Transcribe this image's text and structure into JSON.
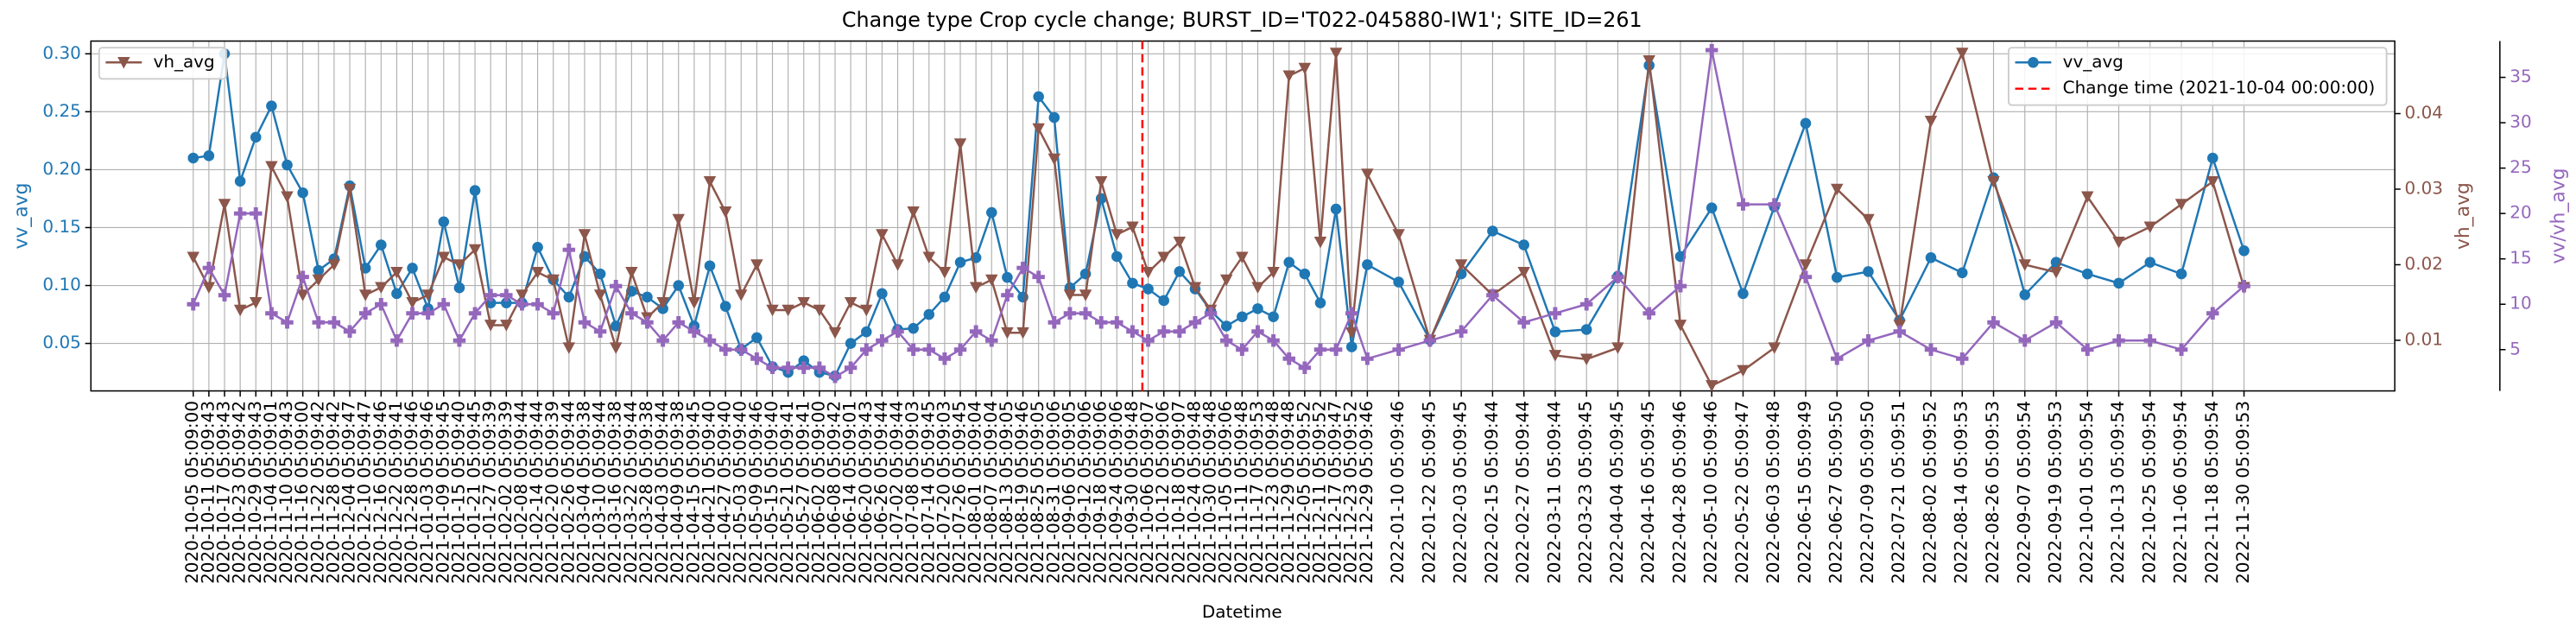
{
  "chart_data": {
    "type": "line",
    "title": "Change type Crop cycle change; BURST_ID='T022-045880-IW1'; SITE_ID=261",
    "xlabel": "Datetime",
    "x": [
      "2020-10-05 05:09:00",
      "2020-10-11 05:09:43",
      "2020-10-17 05:09:43",
      "2020-10-23 05:09:42",
      "2020-10-29 05:09:43",
      "2020-11-04 05:09:01",
      "2020-11-10 05:09:43",
      "2020-11-16 05:09:00",
      "2020-11-22 05:09:42",
      "2020-11-28 05:09:42",
      "2020-12-04 05:09:47",
      "2020-12-10 05:09:47",
      "2020-12-16 05:09:46",
      "2020-12-22 05:09:41",
      "2020-12-28 05:09:46",
      "2021-01-03 05:09:46",
      "2021-01-09 05:09:45",
      "2021-01-15 05:09:40",
      "2021-01-21 05:09:45",
      "2021-01-27 05:09:39",
      "2021-02-02 05:09:39",
      "2021-02-08 05:09:44",
      "2021-02-14 05:09:44",
      "2021-02-20 05:09:39",
      "2021-02-26 05:09:44",
      "2021-03-04 05:09:38",
      "2021-03-10 05:09:44",
      "2021-03-16 05:09:38",
      "2021-03-22 05:09:44",
      "2021-03-28 05:09:38",
      "2021-04-03 05:09:44",
      "2021-04-09 05:09:38",
      "2021-04-15 05:09:45",
      "2021-04-21 05:09:40",
      "2021-04-27 05:09:40",
      "2021-05-03 05:09:40",
      "2021-05-09 05:09:46",
      "2021-05-15 05:09:40",
      "2021-05-21 05:09:41",
      "2021-05-27 05:09:41",
      "2021-06-02 05:09:00",
      "2021-06-08 05:09:42",
      "2021-06-14 05:09:01",
      "2021-06-20 05:09:43",
      "2021-06-26 05:09:44",
      "2021-07-02 05:09:44",
      "2021-07-08 05:09:03",
      "2021-07-14 05:09:45",
      "2021-07-20 05:09:03",
      "2021-07-26 05:09:45",
      "2021-08-01 05:09:04",
      "2021-08-07 05:09:04",
      "2021-08-13 05:09:05",
      "2021-08-19 05:09:46",
      "2021-08-25 05:09:05",
      "2021-08-31 05:09:06",
      "2021-09-06 05:09:05",
      "2021-09-12 05:09:06",
      "2021-09-18 05:09:06",
      "2021-09-24 05:09:06",
      "2021-09-30 05:09:48",
      "2021-10-06 05:09:07",
      "2021-10-12 05:09:06",
      "2021-10-18 05:09:07",
      "2021-10-24 05:09:48",
      "2021-10-30 05:09:48",
      "2021-11-05 05:09:06",
      "2021-11-11 05:09:48",
      "2021-11-17 05:09:53",
      "2021-11-23 05:09:48",
      "2021-11-29 05:09:48",
      "2021-12-05 05:09:52",
      "2021-12-11 05:09:52",
      "2021-12-17 05:09:47",
      "2021-12-23 05:09:52",
      "2021-12-29 05:09:46",
      "2022-01-10 05:09:46",
      "2022-01-22 05:09:45",
      "2022-02-03 05:09:45",
      "2022-02-15 05:09:44",
      "2022-02-27 05:09:44",
      "2022-03-11 05:09:44",
      "2022-03-23 05:09:45",
      "2022-04-04 05:09:45",
      "2022-04-16 05:09:45",
      "2022-04-28 05:09:46",
      "2022-05-10 05:09:46",
      "2022-05-22 05:09:47",
      "2022-06-03 05:09:48",
      "2022-06-15 05:09:49",
      "2022-06-27 05:09:50",
      "2022-07-09 05:09:50",
      "2022-07-21 05:09:51",
      "2022-08-02 05:09:52",
      "2022-08-14 05:09:53",
      "2022-08-26 05:09:53",
      "2022-09-07 05:09:54",
      "2022-09-19 05:09:53",
      "2022-10-01 05:09:54",
      "2022-10-13 05:09:54",
      "2022-10-25 05:09:54",
      "2022-11-06 05:09:54",
      "2022-11-18 05:09:54",
      "2022-11-30 05:09:53"
    ],
    "xlim": [
      "2020-08-27 00:00:00",
      "2023-01-27 00:00:00"
    ],
    "grid": true,
    "series": [
      {
        "name": "vv_avg",
        "color": "#1f77b4",
        "marker": "o",
        "axis": "y",
        "legend": "upper right",
        "values": [
          0.21,
          0.212,
          0.3,
          0.19,
          0.228,
          0.255,
          0.204,
          0.18,
          0.113,
          0.123,
          0.186,
          0.115,
          0.135,
          0.093,
          0.115,
          0.08,
          0.155,
          0.098,
          0.182,
          0.085,
          0.085,
          0.085,
          0.133,
          0.105,
          0.09,
          0.125,
          0.11,
          0.065,
          0.095,
          0.09,
          0.08,
          0.1,
          0.065,
          0.117,
          0.082,
          0.045,
          0.055,
          0.03,
          0.025,
          0.035,
          0.025,
          0.022,
          0.05,
          0.06,
          0.093,
          0.062,
          0.063,
          0.075,
          0.09,
          0.12,
          0.124,
          0.163,
          0.107,
          0.09,
          0.263,
          0.245,
          0.098,
          0.11,
          0.175,
          0.125,
          0.102,
          0.097,
          0.087,
          0.112,
          0.097,
          0.078,
          0.065,
          0.073,
          0.08,
          0.073,
          0.12,
          0.11,
          0.085,
          0.166,
          0.047,
          0.118,
          0.103,
          0.053,
          0.11,
          0.147,
          0.135,
          0.06,
          0.062,
          0.108,
          0.29,
          0.125,
          0.167,
          0.093,
          0.168,
          0.24,
          0.107,
          0.112,
          0.07,
          0.124,
          0.111,
          0.193,
          0.092,
          0.12,
          0.11,
          0.102,
          0.12,
          0.11,
          0.21,
          0.13
        ]
      },
      {
        "name": "vh_avg",
        "color": "#8c564b",
        "marker": "v",
        "axis": "y2",
        "legend": "upper left",
        "values": [
          0.021,
          0.017,
          0.028,
          0.014,
          0.015,
          0.033,
          0.029,
          0.016,
          0.018,
          0.02,
          0.03,
          0.016,
          0.017,
          0.019,
          0.015,
          0.016,
          0.021,
          0.02,
          0.022,
          0.012,
          0.012,
          0.016,
          0.019,
          0.018,
          0.009,
          0.024,
          0.016,
          0.009,
          0.019,
          0.013,
          0.015,
          0.026,
          0.015,
          0.031,
          0.027,
          0.016,
          0.02,
          0.014,
          0.014,
          0.015,
          0.014,
          0.011,
          0.015,
          0.014,
          0.024,
          0.02,
          0.027,
          0.021,
          0.019,
          0.036,
          0.017,
          0.018,
          0.011,
          0.011,
          0.038,
          0.034,
          0.016,
          0.016,
          0.031,
          0.024,
          0.025,
          0.019,
          0.021,
          0.023,
          0.017,
          0.014,
          0.018,
          0.021,
          0.017,
          0.019,
          0.045,
          0.046,
          0.023,
          0.048,
          0.011,
          0.032,
          0.024,
          0.01,
          0.02,
          0.016,
          0.019,
          0.008,
          0.0075,
          0.009,
          0.047,
          0.012,
          0.004,
          0.006,
          0.009,
          0.02,
          0.03,
          0.026,
          0.012,
          0.039,
          0.048,
          0.031,
          0.02,
          0.019,
          0.029,
          0.023,
          0.025,
          0.028,
          0.031,
          0.017
        ]
      },
      {
        "name": "vv/vh_avg",
        "color": "#9467bd",
        "marker": "P",
        "axis": "y3",
        "values": [
          10,
          14,
          11,
          20,
          20,
          9,
          8,
          13,
          8,
          8,
          7,
          9,
          10,
          6,
          9,
          9,
          10,
          6,
          9,
          11,
          11,
          10,
          10,
          9,
          16,
          8,
          7,
          12,
          9,
          8,
          6,
          8,
          7,
          6,
          5,
          5,
          4,
          3,
          3,
          3,
          3,
          2,
          3,
          5,
          6,
          7,
          5,
          5,
          4,
          5,
          7,
          6,
          11,
          14,
          13,
          8,
          9,
          9,
          8,
          8,
          7,
          6,
          7,
          7,
          8,
          9,
          6,
          5,
          7,
          6,
          4,
          3,
          5,
          5,
          9,
          4,
          5,
          6,
          7,
          11,
          8,
          9,
          10,
          13,
          9,
          12,
          38,
          21,
          21,
          13,
          4,
          6,
          7,
          5,
          4,
          8,
          6,
          8,
          5,
          6,
          6,
          5,
          9,
          12
        ]
      }
    ],
    "ylim": [
      0.009,
      0.311
    ],
    "yticks": [
      0.05,
      {
        "value": 0.1,
        "label": "0.10"
      },
      0.15,
      {
        "value": 0.2,
        "label": "0.20"
      },
      0.25,
      {
        "value": 0.3,
        "label": "0.30"
      }
    ],
    "y2lim": [
      0.0033,
      0.0496
    ],
    "y2ticks": [
      0.01,
      0.02,
      0.03,
      0.04
    ],
    "y3lim": [
      0.45,
      39
    ],
    "y3ticks": [
      5,
      10,
      15,
      20,
      25,
      30,
      35
    ],
    "vlines": [
      {
        "name": "Change time (2021-10-04 00:00:00)",
        "x": "2021-10-04 00:00:00",
        "color": "#ff0000",
        "legend": "upper right"
      }
    ]
  }
}
